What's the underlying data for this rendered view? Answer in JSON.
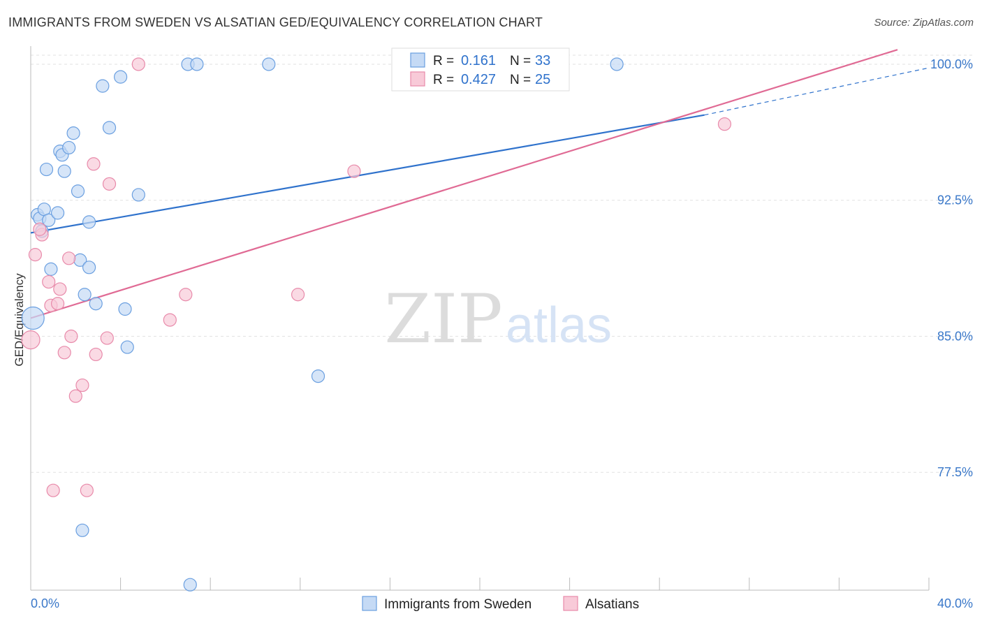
{
  "title": "IMMIGRANTS FROM SWEDEN VS ALSATIAN GED/EQUIVALENCY CORRELATION CHART",
  "source": "Source: ZipAtlas.com",
  "chart_data": {
    "type": "scatter",
    "title": "IMMIGRANTS FROM SWEDEN VS ALSATIAN GED/EQUIVALENCY CORRELATION CHART",
    "xlabel": "",
    "ylabel": "GED/Equivalency",
    "xlim": [
      0,
      40
    ],
    "ylim": [
      71,
      101
    ],
    "x_tick_labels": [
      "0.0%",
      "40.0%"
    ],
    "y_ticks": [
      100,
      92.5,
      85,
      77.5
    ],
    "y_tick_labels": [
      "100.0%",
      "92.5%",
      "85.0%",
      "77.5%"
    ],
    "watermark": {
      "zip": "ZIP",
      "atlas": "atlas"
    },
    "legend_stats": [
      {
        "r_label": "R =",
        "r_value": "0.161",
        "n_label": "N =",
        "n_value": "33"
      },
      {
        "r_label": "R =",
        "r_value": "0.427",
        "n_label": "N =",
        "n_value": "25"
      }
    ],
    "series": [
      {
        "name": "Immigrants from Sweden",
        "color": "#6a9fe0",
        "fill": "#c5daf5",
        "line_color": "#2f72cc",
        "trend": {
          "x0": 0,
          "y0": 90.7,
          "x1": 30,
          "y1": 97.2,
          "dash_to_x": 40,
          "dash_to_y": 99.8
        },
        "points": [
          [
            0.3,
            91.7
          ],
          [
            0.4,
            91.5
          ],
          [
            0.6,
            92.0
          ],
          [
            0.8,
            91.4
          ],
          [
            0.9,
            88.7
          ],
          [
            1.2,
            91.8
          ],
          [
            0.7,
            94.2
          ],
          [
            1.3,
            95.2
          ],
          [
            1.4,
            95.0
          ],
          [
            1.5,
            94.1
          ],
          [
            1.7,
            95.4
          ],
          [
            1.9,
            96.2
          ],
          [
            2.1,
            93.0
          ],
          [
            2.2,
            89.2
          ],
          [
            2.4,
            87.3
          ],
          [
            2.6,
            88.8
          ],
          [
            2.6,
            91.3
          ],
          [
            2.9,
            86.8
          ],
          [
            3.2,
            98.8
          ],
          [
            3.5,
            96.5
          ],
          [
            4.0,
            99.3
          ],
          [
            4.2,
            86.5
          ],
          [
            4.3,
            84.4
          ],
          [
            4.8,
            92.8
          ],
          [
            7.0,
            100.0
          ],
          [
            7.4,
            100.0
          ],
          [
            10.6,
            100.0
          ],
          [
            12.8,
            82.8
          ],
          [
            26.1,
            100.0
          ],
          [
            2.3,
            74.3
          ],
          [
            7.1,
            71.3
          ],
          [
            0.5,
            90.8
          ],
          [
            0.1,
            86.0
          ]
        ],
        "point_sizes": [
          9,
          9,
          9,
          9,
          9,
          9,
          9,
          9,
          9,
          9,
          9,
          9,
          9,
          9,
          9,
          9,
          9,
          9,
          9,
          9,
          9,
          9,
          9,
          9,
          9,
          9,
          9,
          9,
          9,
          9,
          9,
          9,
          16
        ]
      },
      {
        "name": "Alsatians",
        "color": "#e88aaa",
        "fill": "#f8cad8",
        "line_color": "#e06a94",
        "trend": {
          "x0": 0,
          "y0": 86.0,
          "x1": 38.6,
          "y1": 100.8
        },
        "points": [
          [
            0.2,
            89.5
          ],
          [
            0.5,
            90.6
          ],
          [
            0.8,
            88.0
          ],
          [
            0.9,
            86.7
          ],
          [
            1.0,
            76.5
          ],
          [
            1.2,
            86.8
          ],
          [
            1.3,
            87.6
          ],
          [
            1.5,
            84.1
          ],
          [
            1.7,
            89.3
          ],
          [
            1.8,
            85.0
          ],
          [
            2.0,
            81.7
          ],
          [
            2.3,
            82.3
          ],
          [
            2.5,
            76.5
          ],
          [
            2.8,
            94.5
          ],
          [
            2.9,
            84.0
          ],
          [
            3.4,
            84.9
          ],
          [
            3.5,
            93.4
          ],
          [
            4.8,
            100.0
          ],
          [
            6.2,
            85.9
          ],
          [
            6.9,
            87.3
          ],
          [
            11.9,
            87.3
          ],
          [
            14.4,
            94.1
          ],
          [
            30.9,
            96.7
          ],
          [
            0.4,
            90.9
          ],
          [
            0.0,
            84.8
          ]
        ],
        "point_sizes": [
          9,
          9,
          9,
          9,
          9,
          9,
          9,
          9,
          9,
          9,
          9,
          9,
          9,
          9,
          9,
          9,
          9,
          9,
          9,
          9,
          9,
          9,
          9,
          9,
          13
        ]
      }
    ]
  }
}
